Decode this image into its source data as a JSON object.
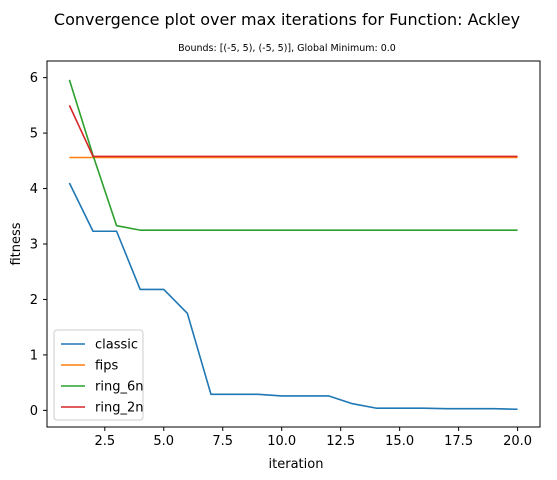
{
  "chart_data": {
    "type": "line",
    "title": "Convergence plot over max iterations for Function: Ackley",
    "subtitle": "Bounds: [(-5, 5), (-5, 5)], Global Minimum: 0.0",
    "xlabel": "iteration",
    "ylabel": "fitness",
    "xlim": [
      0.05,
      20.95
    ],
    "ylim": [
      -0.3,
      6.3
    ],
    "xticks": [
      2.5,
      5.0,
      7.5,
      10.0,
      12.5,
      15.0,
      17.5,
      20.0
    ],
    "xtick_labels": [
      "2.5",
      "5.0",
      "7.5",
      "10.0",
      "12.5",
      "15.0",
      "17.5",
      "20.0"
    ],
    "yticks": [
      0,
      1,
      2,
      3,
      4,
      5,
      6
    ],
    "ytick_labels": [
      "0",
      "1",
      "2",
      "3",
      "4",
      "5",
      "6"
    ],
    "grid": false,
    "legend_position": "lower-left",
    "x": [
      1,
      2,
      3,
      4,
      5,
      6,
      7,
      8,
      9,
      10,
      11,
      12,
      13,
      14,
      15,
      16,
      17,
      18,
      19,
      20
    ],
    "series": [
      {
        "name": "classic",
        "color": "#1f77b4",
        "values": [
          4.1,
          3.23,
          3.23,
          2.18,
          2.18,
          1.75,
          0.29,
          0.29,
          0.29,
          0.26,
          0.26,
          0.26,
          0.12,
          0.04,
          0.04,
          0.04,
          0.03,
          0.03,
          0.03,
          0.02
        ]
      },
      {
        "name": "fips",
        "color": "#ff7f0e",
        "values": [
          4.56,
          4.56,
          4.56,
          4.56,
          4.56,
          4.56,
          4.56,
          4.56,
          4.56,
          4.56,
          4.56,
          4.56,
          4.56,
          4.56,
          4.56,
          4.56,
          4.56,
          4.56,
          4.56,
          4.56
        ]
      },
      {
        "name": "ring_6n",
        "color": "#2ca02c",
        "values": [
          5.96,
          4.6,
          3.33,
          3.25,
          3.25,
          3.25,
          3.25,
          3.25,
          3.25,
          3.25,
          3.25,
          3.25,
          3.25,
          3.25,
          3.25,
          3.25,
          3.25,
          3.25,
          3.25,
          3.25
        ]
      },
      {
        "name": "ring_2n",
        "color": "#d62728",
        "values": [
          5.5,
          4.58,
          4.58,
          4.58,
          4.58,
          4.58,
          4.58,
          4.58,
          4.58,
          4.58,
          4.58,
          4.58,
          4.58,
          4.58,
          4.58,
          4.58,
          4.58,
          4.58,
          4.58,
          4.58
        ]
      }
    ]
  }
}
